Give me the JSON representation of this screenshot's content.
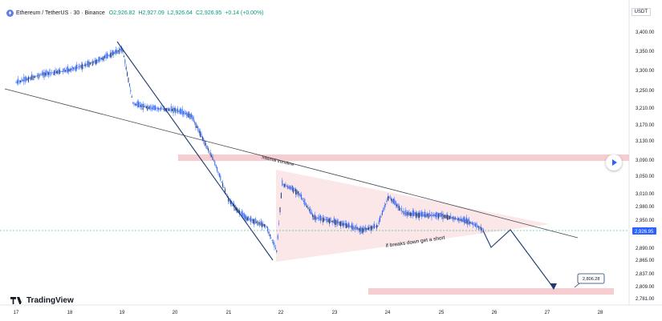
{
  "header": {
    "symbol": "Ethereum / TetherUS · 30 · Binance",
    "open": "O2,926.82",
    "high": "H2,927.09",
    "low": "L2,926.64",
    "close": "C2,926.95",
    "change": "+0.14 (+0.00%)",
    "currency_badge": "USDT"
  },
  "branding": {
    "logo_text": "TradingView"
  },
  "price_tag": "2,926.95",
  "colors": {
    "bull": "#089981",
    "candle": "#2962ff",
    "drawing": "#1e3a6e",
    "zone": "#f4c2c6",
    "wedge": "#fbe4e4",
    "price_tag": "#2962ff"
  },
  "chart_data": {
    "type": "candlestick",
    "y_ticks": [
      "3,400.00",
      "3,350.00",
      "3,300.00",
      "3,250.00",
      "3,210.00",
      "3,170.00",
      "3,130.00",
      "3,090.00",
      "3,050.00",
      "3,010.00",
      "2,980.00",
      "2,950.00",
      "2,926.95",
      "2,890.00",
      "2,865.00",
      "2,837.00",
      "2,809.00",
      "2,781.00"
    ],
    "x_ticks": [
      "17",
      "18",
      "19",
      "20",
      "21",
      "22",
      "23",
      "24",
      "25",
      "26",
      "27",
      "28"
    ],
    "annotations": {
      "trendline_label": "Internal trendline",
      "breakdown_note": "if breaks down get a short",
      "target_label": "2,806.28"
    },
    "zones": [
      "3,090 resistance zone",
      "2,806 target zone"
    ],
    "path_anchors": [
      {
        "x": "17",
        "y": 3280
      },
      {
        "x": "17.5",
        "y": 3300
      },
      {
        "x": "18",
        "y": 3310
      },
      {
        "x": "18.5",
        "y": 3330
      },
      {
        "x": "19",
        "y": 3360
      },
      {
        "x": "19.2",
        "y": 3230
      },
      {
        "x": "19.5",
        "y": 3220
      },
      {
        "x": "20",
        "y": 3215
      },
      {
        "x": "20.3",
        "y": 3200
      },
      {
        "x": "20.5",
        "y": 3150
      },
      {
        "x": "20.7",
        "y": 3100
      },
      {
        "x": "21",
        "y": 3000
      },
      {
        "x": "21.3",
        "y": 2960
      },
      {
        "x": "21.7",
        "y": 2940
      },
      {
        "x": "21.9",
        "y": 2880
      },
      {
        "x": "22",
        "y": 3040
      },
      {
        "x": "22.3",
        "y": 3020
      },
      {
        "x": "22.6",
        "y": 2960
      },
      {
        "x": "23",
        "y": 2950
      },
      {
        "x": "23.5",
        "y": 2930
      },
      {
        "x": "23.8",
        "y": 2940
      },
      {
        "x": "24",
        "y": 3010
      },
      {
        "x": "24.3",
        "y": 2970
      },
      {
        "x": "24.7",
        "y": 2965
      },
      {
        "x": "25",
        "y": 2965
      },
      {
        "x": "25.5",
        "y": 2950
      },
      {
        "x": "25.8",
        "y": 2930
      }
    ]
  }
}
